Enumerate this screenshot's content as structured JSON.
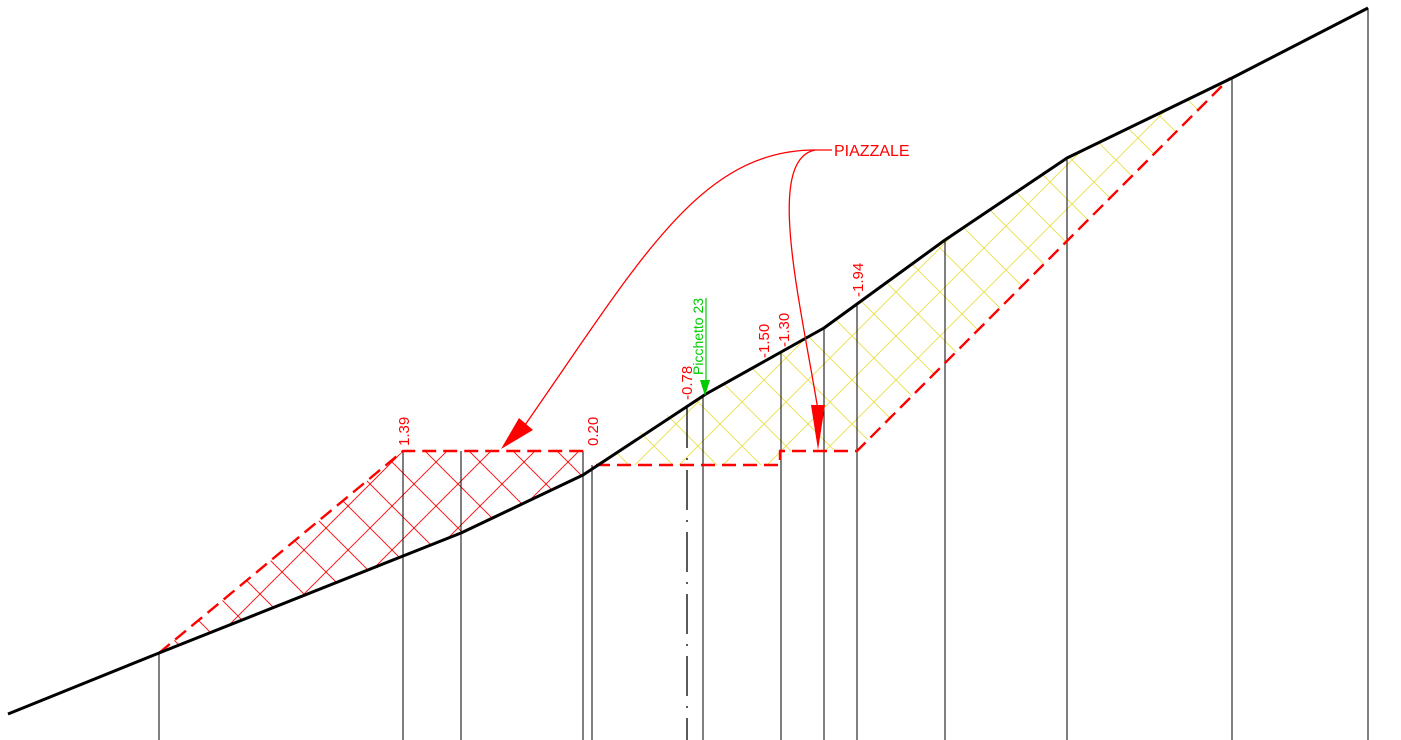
{
  "callout": {
    "label": "PIAZZALE",
    "color": "#ff0000"
  },
  "station_marker": {
    "label": "Picchetto 23",
    "color": "#00cc00"
  },
  "elevation_labels": [
    {
      "id": "fill-left",
      "value": "1.39"
    },
    {
      "id": "fill-right",
      "value": "0.20"
    },
    {
      "id": "cut-axis",
      "value": "-0.78"
    },
    {
      "id": "cut-a",
      "value": "-1.50"
    },
    {
      "id": "cut-b",
      "value": "-1.30"
    },
    {
      "id": "cut-c",
      "value": "-1.94"
    }
  ],
  "colors": {
    "ground_line": "#000000",
    "design_line": "#ff0000",
    "fill_hatch": "#ff0000",
    "cut_hatch": "#e6e04a",
    "verticals": "#000000"
  }
}
